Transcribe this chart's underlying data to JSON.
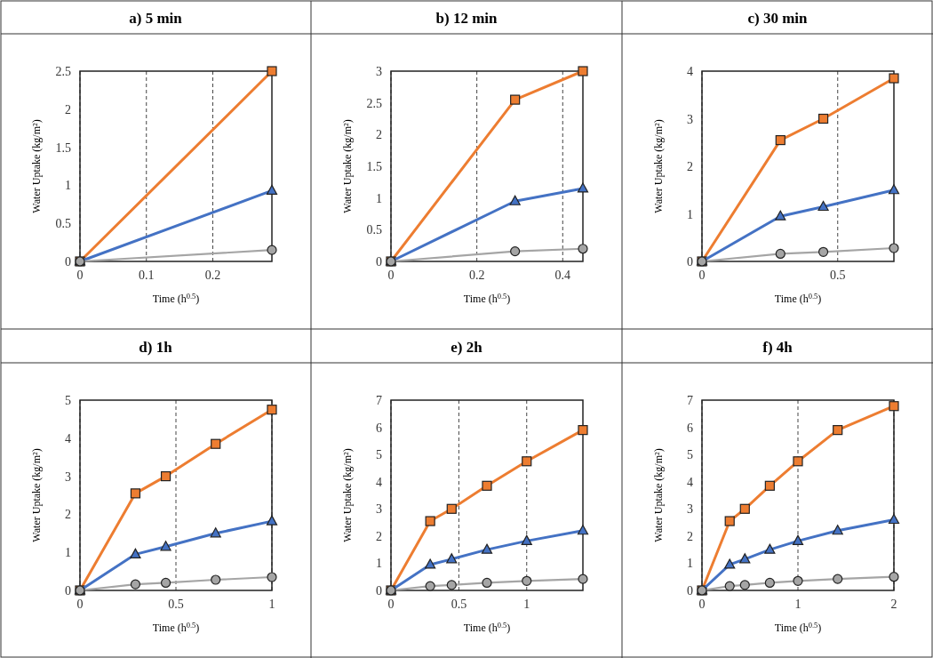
{
  "chart_data": [
    {
      "type": "line",
      "title": "a) 5 min",
      "xlabel": "Time (h$^{0.5}$)",
      "ylabel": "Water Uptake (kg/m²)",
      "x": [
        0,
        0.289
      ],
      "xlim": [
        0,
        0.289
      ],
      "xticks": [
        0,
        0.1,
        0.2
      ],
      "ylim": [
        0,
        2.5
      ],
      "yticks": [
        0,
        0.5,
        1,
        1.5,
        2,
        2.5
      ],
      "grid": "x",
      "line_style": "solid",
      "series": [
        {
          "color": "#ed7d31",
          "marker": "square",
          "values": [
            0,
            2.5
          ]
        },
        {
          "color": "#4472c4",
          "marker": "triangle",
          "values": [
            0,
            0.93
          ]
        },
        {
          "color": "#a5a5a5",
          "marker": "circle",
          "values": [
            0,
            0.15
          ]
        }
      ]
    },
    {
      "type": "line",
      "title": "b) 12 min",
      "xlabel": "Time (h$^{0.5}$)",
      "ylabel": "Water Uptake (kg/m²)",
      "x": [
        0,
        0.289,
        0.447
      ],
      "xlim": [
        0,
        0.447
      ],
      "xticks": [
        0,
        0.2,
        0.4
      ],
      "ylim": [
        0,
        3
      ],
      "yticks": [
        0,
        0.5,
        1,
        1.5,
        2,
        2.5,
        3
      ],
      "grid": "x",
      "line_style": "solid",
      "series": [
        {
          "color": "#ed7d31",
          "marker": "square",
          "values": [
            0,
            2.55,
            3.0
          ]
        },
        {
          "color": "#4472c4",
          "marker": "triangle",
          "values": [
            0,
            0.95,
            1.15
          ]
        },
        {
          "color": "#a5a5a5",
          "marker": "circle",
          "values": [
            0,
            0.16,
            0.2
          ]
        }
      ]
    },
    {
      "type": "line",
      "title": "c) 30 min",
      "xlabel": "Time (h$^{0.5}$)",
      "ylabel": "Water Uptake (kg/m²)",
      "x": [
        0,
        0.289,
        0.447,
        0.707
      ],
      "xlim": [
        0,
        0.707
      ],
      "xticks": [
        0,
        0.5
      ],
      "ylim": [
        0,
        4
      ],
      "yticks": [
        0,
        1,
        2,
        3,
        4
      ],
      "grid": "x",
      "line_style": "solid",
      "series": [
        {
          "color": "#ed7d31",
          "marker": "square",
          "values": [
            0,
            2.55,
            3.0,
            3.85
          ]
        },
        {
          "color": "#4472c4",
          "marker": "triangle",
          "values": [
            0,
            0.95,
            1.15,
            1.5
          ]
        },
        {
          "color": "#a5a5a5",
          "marker": "circle",
          "values": [
            0,
            0.16,
            0.2,
            0.28
          ]
        }
      ]
    },
    {
      "type": "line",
      "title": "d) 1h",
      "xlabel": "Time (h$^{0.5}$)",
      "ylabel": "Water Uptake (kg/m²)",
      "x": [
        0,
        0.289,
        0.447,
        0.707,
        1
      ],
      "xlim": [
        0,
        1
      ],
      "xticks": [
        0,
        0.5,
        1
      ],
      "ylim": [
        0,
        5
      ],
      "yticks": [
        0,
        1,
        2,
        3,
        4,
        5
      ],
      "grid": "x",
      "line_style": "solid",
      "series": [
        {
          "color": "#ed7d31",
          "marker": "square",
          "values": [
            0,
            2.55,
            3.0,
            3.85,
            4.75
          ]
        },
        {
          "color": "#4472c4",
          "marker": "triangle",
          "values": [
            0,
            0.95,
            1.15,
            1.5,
            1.82
          ]
        },
        {
          "color": "#a5a5a5",
          "marker": "circle",
          "values": [
            0,
            0.16,
            0.2,
            0.28,
            0.35
          ]
        }
      ]
    },
    {
      "type": "line",
      "title": "e) 2h",
      "xlabel": "Time (h$^{0.5}$)",
      "ylabel": "Water Uptake (kg/m²)",
      "x": [
        0,
        0.289,
        0.447,
        0.707,
        1,
        1.414
      ],
      "xlim": [
        0,
        1.414
      ],
      "xticks": [
        0,
        0.5,
        1
      ],
      "ylim": [
        0,
        7
      ],
      "yticks": [
        0,
        1,
        2,
        3,
        4,
        5,
        6,
        7
      ],
      "grid": "x",
      "line_style": "solid",
      "series": [
        {
          "color": "#ed7d31",
          "marker": "square",
          "values": [
            0,
            2.55,
            3.0,
            3.85,
            4.75,
            5.9
          ]
        },
        {
          "color": "#4472c4",
          "marker": "triangle",
          "values": [
            0,
            0.95,
            1.15,
            1.5,
            1.82,
            2.2
          ]
        },
        {
          "color": "#a5a5a5",
          "marker": "circle",
          "values": [
            0,
            0.16,
            0.2,
            0.28,
            0.35,
            0.42
          ]
        }
      ]
    },
    {
      "type": "line",
      "title": "f) 4h",
      "xlabel": "Time (h$^{0.5}$)",
      "ylabel": "Water Uptake (kg/m²)",
      "x": [
        0,
        0.289,
        0.447,
        0.707,
        1,
        1.414,
        2
      ],
      "xlim": [
        0,
        2
      ],
      "xticks": [
        0,
        1,
        2
      ],
      "ylim": [
        0,
        7
      ],
      "yticks": [
        0,
        1,
        2,
        3,
        4,
        5,
        6,
        7
      ],
      "grid": "x",
      "line_style": "solid",
      "series": [
        {
          "color": "#ed7d31",
          "marker": "square",
          "values": [
            0,
            2.55,
            3.0,
            3.85,
            4.75,
            5.9,
            6.78
          ]
        },
        {
          "color": "#4472c4",
          "marker": "triangle",
          "values": [
            0,
            0.95,
            1.15,
            1.5,
            1.82,
            2.2,
            2.6
          ]
        },
        {
          "color": "#a5a5a5",
          "marker": "circle",
          "values": [
            0,
            0.16,
            0.2,
            0.28,
            0.35,
            0.42,
            0.5
          ]
        }
      ]
    }
  ]
}
